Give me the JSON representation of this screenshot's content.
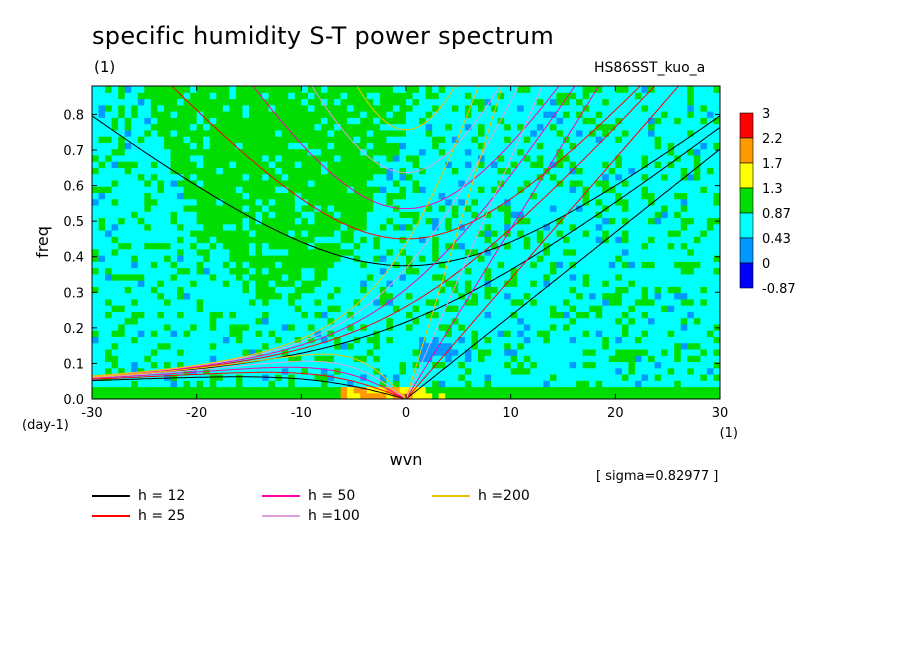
{
  "title": "specific humidity S-T power spectrum",
  "units_label": "(1)",
  "experiment": "HS86SST_kuo_a",
  "sigma_text": "[ sigma=0.82977 ]",
  "chart_data": {
    "type": "heatmap",
    "xlabel": "wvn",
    "ylabel": "freq",
    "x_unit": "(1)",
    "y_unit": "(day-1)",
    "xlim": [
      -30,
      30
    ],
    "ylim": [
      0,
      0.88
    ],
    "x_ticks": [
      -30,
      -20,
      -10,
      0,
      10,
      20,
      30
    ],
    "y_ticks": [
      0.0,
      0.1,
      0.2,
      0.3,
      0.4,
      0.5,
      0.6,
      0.7,
      0.8
    ],
    "colorbar": {
      "levels": [
        "3",
        "2.2",
        "1.7",
        "1.3",
        "0.87",
        "0.43",
        "0",
        "-0.87"
      ],
      "colors": [
        "#ff0000",
        "#ff9900",
        "#ffff00",
        "#00dd00",
        "#00ffff",
        "#0099ff",
        "#0000ff"
      ]
    },
    "dispersion_curves": [
      {
        "label": "h = 12",
        "color": "#000000"
      },
      {
        "label": "h = 25",
        "color": "#ff0000"
      },
      {
        "label": "h = 50",
        "color": "#ff00aa"
      },
      {
        "label": "h =100",
        "color": "#e0a0e0"
      },
      {
        "label": "h =200",
        "color": "#f2c200"
      }
    ]
  }
}
